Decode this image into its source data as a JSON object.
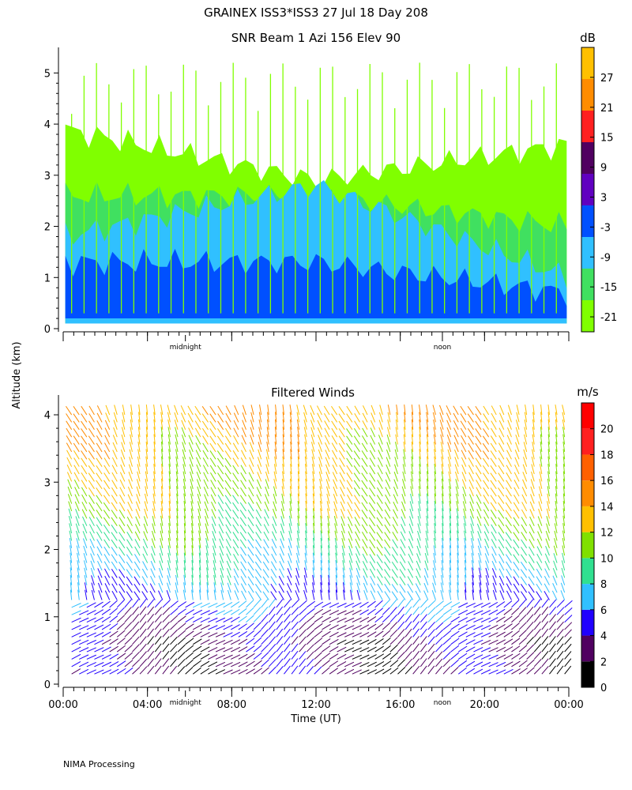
{
  "header": {
    "title": "GRAINEX ISS3*ISS3  27 Jul 18 Day 208",
    "footer": "NIMA Processing"
  },
  "shared": {
    "ylabel": "Altitude (km)",
    "xlabel": "Time (UT)",
    "x_ticks": [
      "00:00",
      "04:00",
      "08:00",
      "12:00",
      "16:00",
      "20:00",
      "00:00"
    ],
    "x_tick_hours": [
      0,
      4,
      8,
      12,
      16,
      20,
      24
    ],
    "markers": [
      {
        "label": "midnight",
        "hour": 5.8
      },
      {
        "label": "noon",
        "hour": 18.0
      }
    ]
  },
  "chart_data": [
    {
      "type": "heatmap",
      "title": "SNR Beam 1 Azi 156 Elev 90",
      "xlabel": "",
      "ylabel": "Altitude (km)",
      "xlim": [
        0,
        24
      ],
      "ylim": [
        0,
        5.5
      ],
      "y_ticks": [
        "0",
        "1",
        "2",
        "3",
        "4",
        "5"
      ],
      "y_tick_values": [
        0,
        1,
        2,
        3,
        4,
        5
      ],
      "colorbar": {
        "unit": "dB",
        "ticks": [
          "27",
          "21",
          "15",
          "9",
          "3",
          "-3",
          "-9",
          "-15",
          "-21"
        ],
        "tick_values": [
          27,
          21,
          15,
          9,
          3,
          -3,
          -9,
          -15,
          -21
        ],
        "range": [
          -24,
          33
        ],
        "colors": [
          "#80ff00",
          "#40e060",
          "#30c0ff",
          "#0050ff",
          "#6000c0",
          "#500060",
          "#ff2020",
          "#ff8c00",
          "#ffc000"
        ]
      },
      "layers": [
        {
          "name": "-21",
          "color": "#80ff00",
          "alt_bottom": 0.1,
          "alt_top_start": 3.9,
          "alt_top_mid": 2.9,
          "alt_top_end": 3.6
        },
        {
          "name": "-15",
          "color": "#40e060",
          "alt_bottom": 0.1,
          "alt_top_start": 2.6,
          "alt_top_mid": 2.6,
          "alt_top_end": 2.0
        },
        {
          "name": "-9",
          "color": "#30c0ff",
          "alt_bottom": 0.1,
          "alt_top_start": 1.8,
          "alt_top_mid": 2.8,
          "alt_top_end": 1.0
        },
        {
          "name": "-3",
          "color": "#0050ff",
          "alt_bottom": 0.2,
          "alt_top_start": 1.3,
          "alt_top_mid": 1.3,
          "alt_top_end": 0.7
        }
      ]
    },
    {
      "type": "scatter",
      "title": "Filtered Winds",
      "xlabel": "Time (UT)",
      "ylabel": "Altitude (km)",
      "xlim": [
        0,
        24
      ],
      "ylim": [
        0,
        4.2
      ],
      "y_ticks": [
        "0",
        "1",
        "2",
        "3",
        "4"
      ],
      "y_tick_values": [
        0,
        1,
        2,
        3,
        4
      ],
      "colorbar": {
        "unit": "m/s",
        "ticks": [
          "20",
          "18",
          "16",
          "14",
          "12",
          "10",
          "8",
          "6",
          "4",
          "2",
          "0"
        ],
        "tick_values": [
          20,
          18,
          16,
          14,
          12,
          10,
          8,
          6,
          4,
          2,
          0
        ],
        "range": [
          0,
          22
        ],
        "colors": [
          "#000000",
          "#500060",
          "#2000ff",
          "#30c0ff",
          "#30e090",
          "#80e000",
          "#ffc000",
          "#ff8c00",
          "#ff6000",
          "#ff2020",
          "#ff0000"
        ]
      },
      "wind_profile": {
        "altitudes": [
          0.2,
          0.6,
          1.0,
          1.5,
          2.0,
          2.5,
          3.0,
          3.5,
          4.0
        ],
        "speeds": [
          3,
          3,
          5,
          7,
          9,
          11,
          12,
          13,
          14
        ]
      }
    }
  ]
}
